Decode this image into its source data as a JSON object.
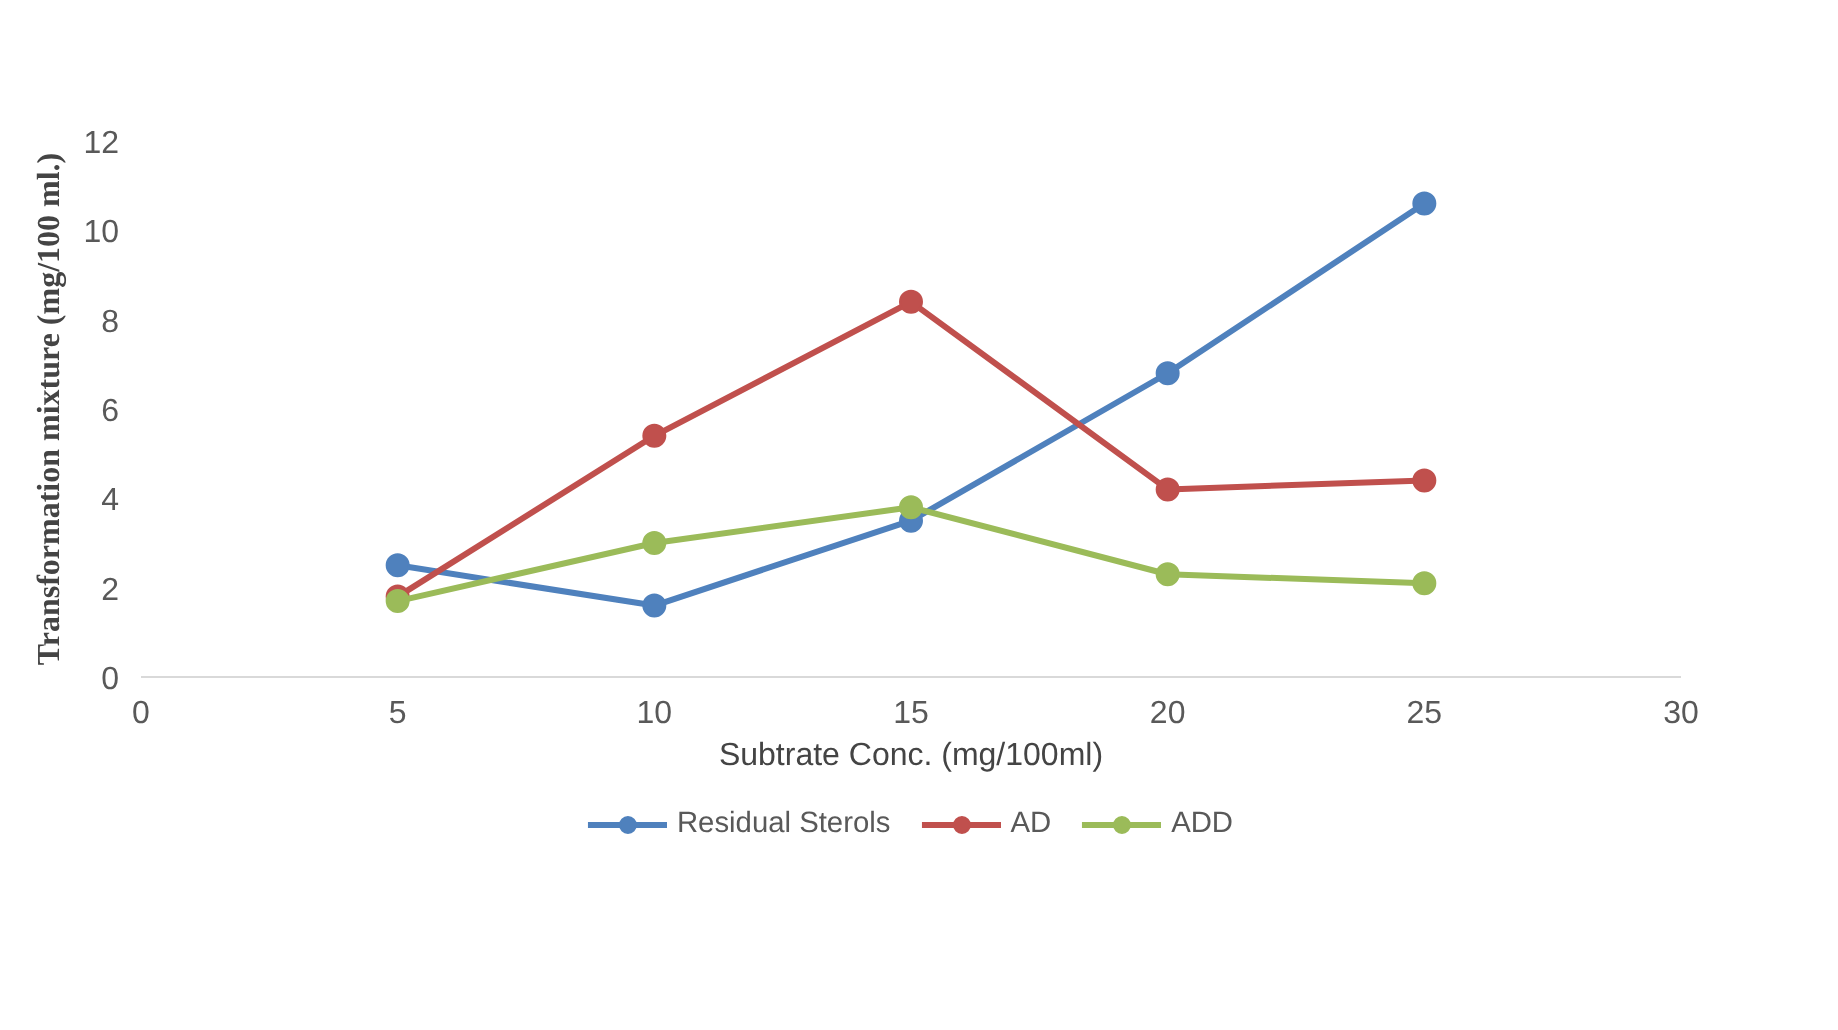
{
  "chart_data": {
    "type": "line",
    "xlabel": "Subtrate Conc. (mg/100ml)",
    "ylabel": "Transformation mixture (mg/100 ml.)",
    "x": [
      5,
      10,
      15,
      20,
      25
    ],
    "series": [
      {
        "name": "Residual Sterols",
        "color": "#4f81bd",
        "values": [
          2.5,
          1.6,
          3.5,
          6.8,
          10.6
        ]
      },
      {
        "name": "AD",
        "color": "#c0504d",
        "values": [
          1.8,
          5.4,
          8.4,
          4.2,
          4.4
        ]
      },
      {
        "name": "ADD",
        "color": "#9bbb59",
        "values": [
          1.7,
          3.0,
          3.8,
          2.3,
          2.1
        ]
      }
    ],
    "xlim": [
      0,
      30
    ],
    "xticks": [
      0,
      5,
      10,
      15,
      20,
      25,
      30
    ],
    "ylim": [
      0,
      12
    ],
    "yticks": [
      0,
      2,
      4,
      6,
      8,
      10,
      12
    ],
    "grid": false,
    "legend": "bottom",
    "marker": "circle",
    "line_style": "solid"
  }
}
